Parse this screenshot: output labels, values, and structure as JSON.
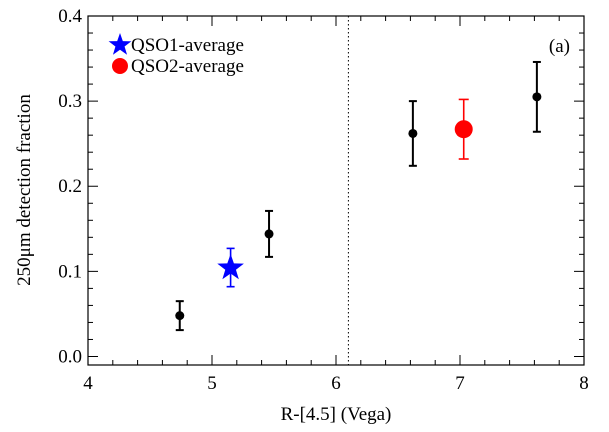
{
  "chart_data": {
    "type": "scatter",
    "xlabel": "R-[4.5] (Vega)",
    "ylabel": "250μm detection fraction",
    "xlim": [
      4,
      8
    ],
    "ylim": [
      -0.01,
      0.4
    ],
    "xticks": [
      4,
      5,
      6,
      7,
      8
    ],
    "xtick_labels": [
      "4",
      "5",
      "6",
      "7",
      "8"
    ],
    "yticks": [
      0.0,
      0.1,
      0.2,
      0.3,
      0.4
    ],
    "ytick_labels": [
      "0.0",
      "0.1",
      "0.2",
      "0.3",
      "0.4"
    ],
    "panel_label": "(a)",
    "grid": false,
    "legend_position": "top-left",
    "vertical_line_x": 6.1,
    "series": [
      {
        "color": "#000000",
        "marker": "circle",
        "points": [
          {
            "x": 4.74,
            "y": 0.048,
            "ylo": 0.031,
            "yhi": 0.065
          },
          {
            "x": 5.46,
            "y": 0.144,
            "ylo": 0.117,
            "yhi": 0.171
          },
          {
            "x": 6.62,
            "y": 0.262,
            "ylo": 0.224,
            "yhi": 0.3
          },
          {
            "x": 7.62,
            "y": 0.305,
            "ylo": 0.264,
            "yhi": 0.346
          }
        ]
      },
      {
        "name": "QSO1-average",
        "color": "#0000ff",
        "marker": "star",
        "points": [
          {
            "x": 5.15,
            "y": 0.104,
            "ylo": 0.082,
            "yhi": 0.127
          }
        ]
      },
      {
        "name": "QSO2-average",
        "color": "#ff0000",
        "marker": "circle-large",
        "points": [
          {
            "x": 7.03,
            "y": 0.267,
            "ylo": 0.232,
            "yhi": 0.302
          }
        ]
      }
    ]
  }
}
